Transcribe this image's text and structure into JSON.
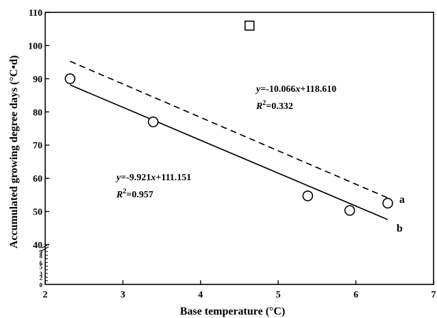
{
  "chart_data": {
    "type": "scatter",
    "xlabel": "Base temperature (°C)",
    "ylabel": "Accumulated growing degree days   (°C•d)",
    "xlim": [
      2,
      7
    ],
    "ylim": [
      40,
      110
    ],
    "x_ticks": [
      2,
      3,
      4,
      5,
      6,
      7
    ],
    "y_ticks": [
      40,
      50,
      60,
      70,
      80,
      90,
      100,
      110
    ],
    "y_break_ticks": [
      0,
      1,
      2,
      3,
      4,
      5,
      6,
      7,
      8,
      9
    ],
    "y_break_tick_labels": [
      "0",
      "2",
      "3",
      "5",
      "6",
      "8",
      "9"
    ],
    "circle_points": [
      {
        "x": 2.32,
        "y": 90.0
      },
      {
        "x": 3.39,
        "y": 77.0
      },
      {
        "x": 5.38,
        "y": 54.7
      },
      {
        "x": 5.92,
        "y": 50.3
      },
      {
        "x": 6.41,
        "y": 52.5
      }
    ],
    "square_points": [
      {
        "x": 4.63,
        "y": 106.0
      }
    ],
    "fit_lines": [
      {
        "label": "a",
        "style": "dashed",
        "slope": -10.066,
        "intercept": 118.61,
        "x_range": [
          2.32,
          6.41
        ],
        "equation_prefix": "y",
        "equation_rest": "=-10.066",
        "equation_var": "x",
        "equation_tail": "+118.610",
        "r2_prefix": "R",
        "r2_sup": "2",
        "r2_rest": "=0.332"
      },
      {
        "label": "b",
        "style": "solid",
        "slope": -9.921,
        "intercept": 111.151,
        "x_range": [
          2.32,
          6.41
        ],
        "equation_prefix": "y",
        "equation_rest": "=-9.921",
        "equation_var": "x",
        "equation_tail": "+111.151",
        "r2_prefix": "R",
        "r2_sup": "2",
        "r2_rest": "=0.957"
      }
    ]
  }
}
